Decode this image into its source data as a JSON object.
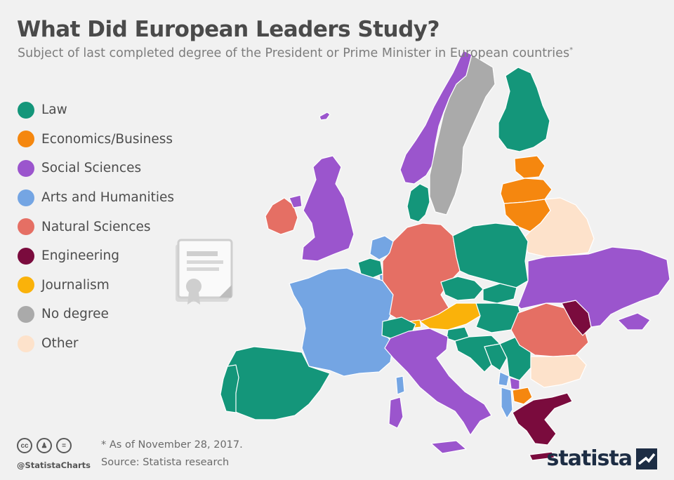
{
  "title": "What Did European Leaders Study?",
  "subtitle": "Subject of last completed degree of the President or Prime Minister in European countries",
  "subtitle_marker": "*",
  "legend": [
    {
      "key": "law",
      "label": "Law",
      "color": "#14967a"
    },
    {
      "key": "econ",
      "label": "Economics/Business",
      "color": "#f5870f"
    },
    {
      "key": "social",
      "label": "Social Sciences",
      "color": "#9b55cd"
    },
    {
      "key": "arts",
      "label": "Arts and Humanities",
      "color": "#74a5e3"
    },
    {
      "key": "natural",
      "label": "Natural Sciences",
      "color": "#e56f64"
    },
    {
      "key": "eng",
      "label": "Engineering",
      "color": "#7a0b3d"
    },
    {
      "key": "journalism",
      "label": "Journalism",
      "color": "#fab20a"
    },
    {
      "key": "none",
      "label": "No degree",
      "color": "#aaaaaa"
    },
    {
      "key": "other",
      "label": "Other",
      "color": "#fde2cb"
    }
  ],
  "note": "* As of November 28, 2017.",
  "source": "Source: Statista research",
  "handle": "@StatistaCharts",
  "license_icons": [
    "cc-icon",
    "person-icon",
    "equals-icon"
  ],
  "brand": "statista",
  "background_color": "#f1f1f1",
  "map_border_color": "#ffffff"
}
